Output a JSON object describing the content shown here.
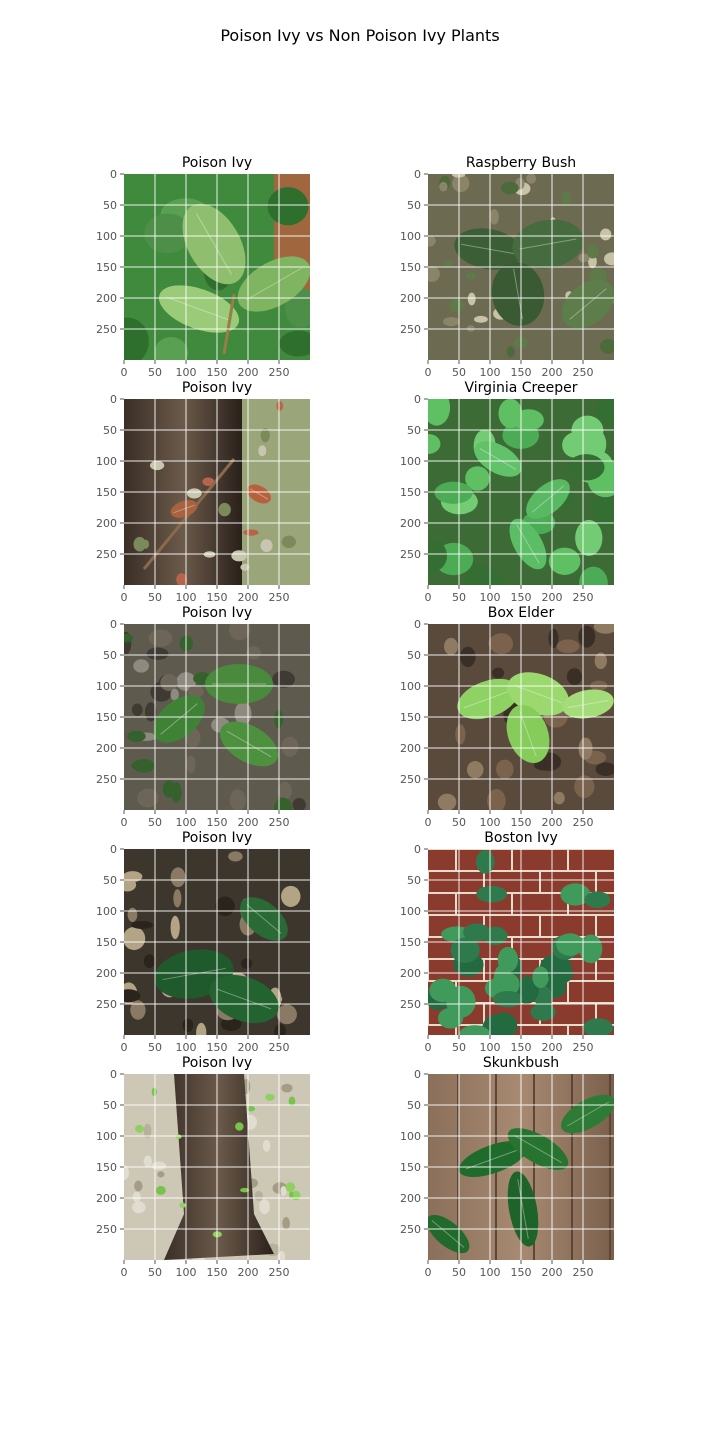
{
  "chart_data": {
    "type": "image-grid",
    "title": "Poison Ivy vs Non Poison Ivy Plants",
    "grid": "on",
    "image_size": [
      300,
      300
    ],
    "xticks": [
      0,
      50,
      100,
      150,
      200,
      250
    ],
    "yticks": [
      0,
      50,
      100,
      150,
      200,
      250
    ],
    "panels": [
      {
        "title": "Poison Ivy",
        "scene": "leaf-closeup"
      },
      {
        "title": "Raspberry Bush",
        "scene": "forest-floor-leaves"
      },
      {
        "title": "Poison Ivy",
        "scene": "tree-trunk-vine"
      },
      {
        "title": "Virginia Creeper",
        "scene": "bright-ground-cover"
      },
      {
        "title": "Poison Ivy",
        "scene": "leaves-over-rocks"
      },
      {
        "title": "Box Elder",
        "scene": "lime-leaves-over-litter"
      },
      {
        "title": "Poison Ivy",
        "scene": "dark-leaves-in-litter"
      },
      {
        "title": "Boston Ivy",
        "scene": "ivy-on-brick-wall"
      },
      {
        "title": "Poison Ivy",
        "scene": "stump-on-sandy-soil"
      },
      {
        "title": "Skunkbush",
        "scene": "leaves-on-wood-fence"
      }
    ]
  }
}
